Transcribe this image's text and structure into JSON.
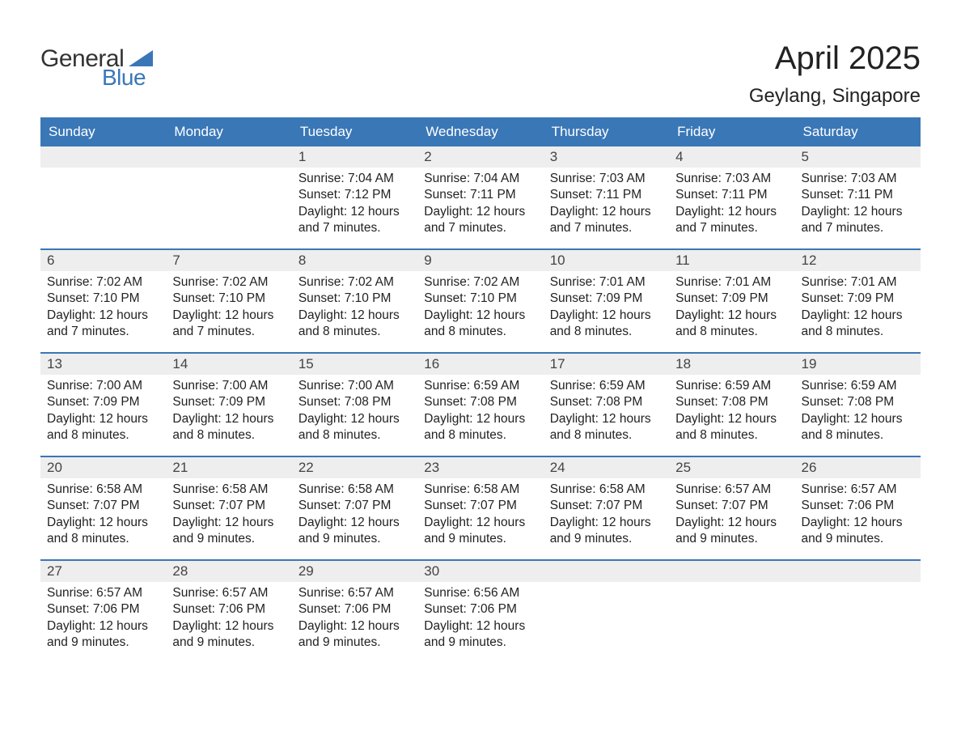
{
  "logo": {
    "text_general": "General",
    "text_blue": "Blue",
    "flag_color": "#3a77b7"
  },
  "title": "April 2025",
  "location": "Geylang, Singapore",
  "colors": {
    "header_bg": "#3a77b7",
    "header_text": "#ffffff",
    "daynum_bg": "#eeeeee",
    "daynum_text": "#444444",
    "body_text": "#222222",
    "week_border": "#3a77b7",
    "background": "#ffffff"
  },
  "typography": {
    "title_fontsize": 40,
    "location_fontsize": 24,
    "header_fontsize": 17,
    "daynum_fontsize": 17,
    "body_fontsize": 15.5
  },
  "day_headers": [
    "Sunday",
    "Monday",
    "Tuesday",
    "Wednesday",
    "Thursday",
    "Friday",
    "Saturday"
  ],
  "weeks": [
    [
      {
        "day": "",
        "sunrise": "",
        "sunset": "",
        "daylight": ""
      },
      {
        "day": "",
        "sunrise": "",
        "sunset": "",
        "daylight": ""
      },
      {
        "day": "1",
        "sunrise": "Sunrise: 7:04 AM",
        "sunset": "Sunset: 7:12 PM",
        "daylight": "Daylight: 12 hours and 7 minutes."
      },
      {
        "day": "2",
        "sunrise": "Sunrise: 7:04 AM",
        "sunset": "Sunset: 7:11 PM",
        "daylight": "Daylight: 12 hours and 7 minutes."
      },
      {
        "day": "3",
        "sunrise": "Sunrise: 7:03 AM",
        "sunset": "Sunset: 7:11 PM",
        "daylight": "Daylight: 12 hours and 7 minutes."
      },
      {
        "day": "4",
        "sunrise": "Sunrise: 7:03 AM",
        "sunset": "Sunset: 7:11 PM",
        "daylight": "Daylight: 12 hours and 7 minutes."
      },
      {
        "day": "5",
        "sunrise": "Sunrise: 7:03 AM",
        "sunset": "Sunset: 7:11 PM",
        "daylight": "Daylight: 12 hours and 7 minutes."
      }
    ],
    [
      {
        "day": "6",
        "sunrise": "Sunrise: 7:02 AM",
        "sunset": "Sunset: 7:10 PM",
        "daylight": "Daylight: 12 hours and 7 minutes."
      },
      {
        "day": "7",
        "sunrise": "Sunrise: 7:02 AM",
        "sunset": "Sunset: 7:10 PM",
        "daylight": "Daylight: 12 hours and 7 minutes."
      },
      {
        "day": "8",
        "sunrise": "Sunrise: 7:02 AM",
        "sunset": "Sunset: 7:10 PM",
        "daylight": "Daylight: 12 hours and 8 minutes."
      },
      {
        "day": "9",
        "sunrise": "Sunrise: 7:02 AM",
        "sunset": "Sunset: 7:10 PM",
        "daylight": "Daylight: 12 hours and 8 minutes."
      },
      {
        "day": "10",
        "sunrise": "Sunrise: 7:01 AM",
        "sunset": "Sunset: 7:09 PM",
        "daylight": "Daylight: 12 hours and 8 minutes."
      },
      {
        "day": "11",
        "sunrise": "Sunrise: 7:01 AM",
        "sunset": "Sunset: 7:09 PM",
        "daylight": "Daylight: 12 hours and 8 minutes."
      },
      {
        "day": "12",
        "sunrise": "Sunrise: 7:01 AM",
        "sunset": "Sunset: 7:09 PM",
        "daylight": "Daylight: 12 hours and 8 minutes."
      }
    ],
    [
      {
        "day": "13",
        "sunrise": "Sunrise: 7:00 AM",
        "sunset": "Sunset: 7:09 PM",
        "daylight": "Daylight: 12 hours and 8 minutes."
      },
      {
        "day": "14",
        "sunrise": "Sunrise: 7:00 AM",
        "sunset": "Sunset: 7:09 PM",
        "daylight": "Daylight: 12 hours and 8 minutes."
      },
      {
        "day": "15",
        "sunrise": "Sunrise: 7:00 AM",
        "sunset": "Sunset: 7:08 PM",
        "daylight": "Daylight: 12 hours and 8 minutes."
      },
      {
        "day": "16",
        "sunrise": "Sunrise: 6:59 AM",
        "sunset": "Sunset: 7:08 PM",
        "daylight": "Daylight: 12 hours and 8 minutes."
      },
      {
        "day": "17",
        "sunrise": "Sunrise: 6:59 AM",
        "sunset": "Sunset: 7:08 PM",
        "daylight": "Daylight: 12 hours and 8 minutes."
      },
      {
        "day": "18",
        "sunrise": "Sunrise: 6:59 AM",
        "sunset": "Sunset: 7:08 PM",
        "daylight": "Daylight: 12 hours and 8 minutes."
      },
      {
        "day": "19",
        "sunrise": "Sunrise: 6:59 AM",
        "sunset": "Sunset: 7:08 PM",
        "daylight": "Daylight: 12 hours and 8 minutes."
      }
    ],
    [
      {
        "day": "20",
        "sunrise": "Sunrise: 6:58 AM",
        "sunset": "Sunset: 7:07 PM",
        "daylight": "Daylight: 12 hours and 8 minutes."
      },
      {
        "day": "21",
        "sunrise": "Sunrise: 6:58 AM",
        "sunset": "Sunset: 7:07 PM",
        "daylight": "Daylight: 12 hours and 9 minutes."
      },
      {
        "day": "22",
        "sunrise": "Sunrise: 6:58 AM",
        "sunset": "Sunset: 7:07 PM",
        "daylight": "Daylight: 12 hours and 9 minutes."
      },
      {
        "day": "23",
        "sunrise": "Sunrise: 6:58 AM",
        "sunset": "Sunset: 7:07 PM",
        "daylight": "Daylight: 12 hours and 9 minutes."
      },
      {
        "day": "24",
        "sunrise": "Sunrise: 6:58 AM",
        "sunset": "Sunset: 7:07 PM",
        "daylight": "Daylight: 12 hours and 9 minutes."
      },
      {
        "day": "25",
        "sunrise": "Sunrise: 6:57 AM",
        "sunset": "Sunset: 7:07 PM",
        "daylight": "Daylight: 12 hours and 9 minutes."
      },
      {
        "day": "26",
        "sunrise": "Sunrise: 6:57 AM",
        "sunset": "Sunset: 7:06 PM",
        "daylight": "Daylight: 12 hours and 9 minutes."
      }
    ],
    [
      {
        "day": "27",
        "sunrise": "Sunrise: 6:57 AM",
        "sunset": "Sunset: 7:06 PM",
        "daylight": "Daylight: 12 hours and 9 minutes."
      },
      {
        "day": "28",
        "sunrise": "Sunrise: 6:57 AM",
        "sunset": "Sunset: 7:06 PM",
        "daylight": "Daylight: 12 hours and 9 minutes."
      },
      {
        "day": "29",
        "sunrise": "Sunrise: 6:57 AM",
        "sunset": "Sunset: 7:06 PM",
        "daylight": "Daylight: 12 hours and 9 minutes."
      },
      {
        "day": "30",
        "sunrise": "Sunrise: 6:56 AM",
        "sunset": "Sunset: 7:06 PM",
        "daylight": "Daylight: 12 hours and 9 minutes."
      },
      {
        "day": "",
        "sunrise": "",
        "sunset": "",
        "daylight": ""
      },
      {
        "day": "",
        "sunrise": "",
        "sunset": "",
        "daylight": ""
      },
      {
        "day": "",
        "sunrise": "",
        "sunset": "",
        "daylight": ""
      }
    ]
  ]
}
